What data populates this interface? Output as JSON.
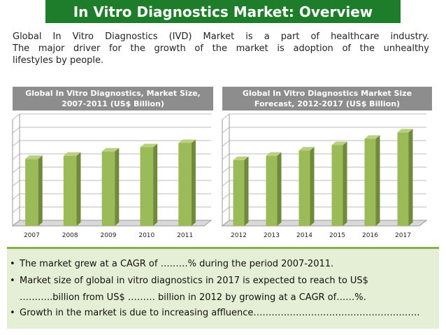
{
  "title": "In Vitro Diagnostics Market: Overview",
  "intro_lines": [
    "Global In Vitro Diagnostics (IVD) Market is a part of healthcare industry.",
    "The major driver for the growth of the market is adoption of the unhealthy",
    "lifestyles by people."
  ],
  "colors": {
    "title_bg": "#1e7d2a",
    "bar_front": "#9bbb59",
    "bar_side": "#6e8a3a",
    "bar_top": "#b9d07e",
    "header_bg": "#8d8d8d",
    "bullet_bg": "#e4efd5"
  },
  "chart_data": [
    {
      "type": "bar",
      "title_lines": [
        "Global In Vitro Diagnostics, Market Size,",
        "2007-2011 (US$ Billion)"
      ],
      "categories": [
        "2007",
        "2008",
        "2009",
        "2010",
        "2011"
      ],
      "values": [
        6.3,
        6.6,
        7.0,
        7.4,
        7.8
      ],
      "ylim": [
        0,
        10
      ],
      "grid": true,
      "style": "3d-columns"
    },
    {
      "type": "bar",
      "title_lines": [
        "Global In Vitro Diagnostics Market Size",
        "Forecast, 2012-2017 (US$ Billion)"
      ],
      "categories": [
        "2012",
        "2013",
        "2014",
        "2015",
        "2016",
        "2017"
      ],
      "values": [
        6.2,
        6.6,
        7.1,
        7.6,
        8.2,
        8.8
      ],
      "ylim": [
        0,
        10
      ],
      "grid": true,
      "style": "3d-columns"
    }
  ],
  "bullets": [
    {
      "marker": "•",
      "text": "The market grew at a CAGR of ………% during the period 2007-2011."
    },
    {
      "marker": "•",
      "text": "Market size of global in vitro diagnostics in 2017 is expected to reach to US$"
    },
    {
      "marker": "",
      "text": "………..billion from US$ ……… billion in 2012 by growing at a CAGR of……%."
    },
    {
      "marker": "•",
      "text": "Growth in the market is due to increasing affluence………………………………………………."
    }
  ]
}
